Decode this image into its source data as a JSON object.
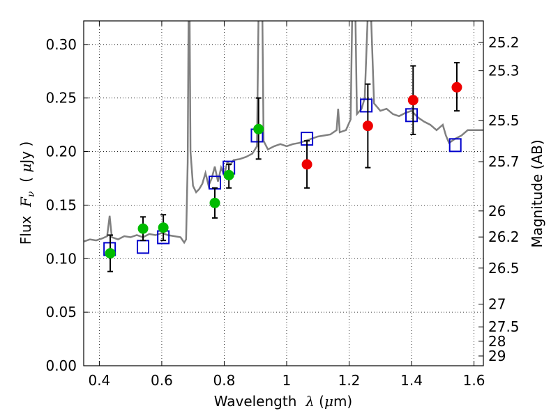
{
  "chart_data": {
    "type": "scatter",
    "xlabel": {
      "pre": "Wavelength  ",
      "sym": "λ",
      "open": " (",
      "mu": "μ",
      "unit": "m)"
    },
    "ylabel": {
      "pre": "Flux  ",
      "sym": "F",
      "sub": "ν",
      "mid": "  ( ",
      "mu": "μ",
      "unit": "Jy )"
    },
    "y2label": "Magnitude (AB)",
    "xlim": [
      0.35,
      1.63
    ],
    "ylim": [
      0.0,
      0.322
    ],
    "grid": true,
    "legend": "none",
    "x_ticks": [
      {
        "v": 0.4,
        "label": "0.4"
      },
      {
        "v": 0.6,
        "label": "0.6"
      },
      {
        "v": 0.8,
        "label": "0.8"
      },
      {
        "v": 1.0,
        "label": "1"
      },
      {
        "v": 1.2,
        "label": "1.2"
      },
      {
        "v": 1.4,
        "label": "1.4"
      },
      {
        "v": 1.6,
        "label": "1.6"
      }
    ],
    "y_ticks": [
      {
        "v": 0.0,
        "label": "0.00"
      },
      {
        "v": 0.05,
        "label": "0.05"
      },
      {
        "v": 0.1,
        "label": "0.10"
      },
      {
        "v": 0.15,
        "label": "0.15"
      },
      {
        "v": 0.2,
        "label": "0.20"
      },
      {
        "v": 0.25,
        "label": "0.25"
      },
      {
        "v": 0.3,
        "label": "0.30"
      }
    ],
    "mag_ticks": [
      "25.2",
      "25.3",
      "25.5",
      "25.7",
      "26",
      "26.2",
      "26.5",
      "27",
      "27.5",
      "28",
      "29"
    ],
    "colors": {
      "spectrum": "#808080",
      "model": "#0000cc",
      "optical": "#00bb00",
      "nir": "#ee0000",
      "errorbar": "#000000",
      "grid": "#000000"
    },
    "spectrum": [
      [
        0.35,
        0.116
      ],
      [
        0.37,
        0.118
      ],
      [
        0.39,
        0.117
      ],
      [
        0.41,
        0.119
      ],
      [
        0.425,
        0.121
      ],
      [
        0.433,
        0.14
      ],
      [
        0.44,
        0.12
      ],
      [
        0.46,
        0.118
      ],
      [
        0.48,
        0.121
      ],
      [
        0.5,
        0.12
      ],
      [
        0.52,
        0.122
      ],
      [
        0.54,
        0.12
      ],
      [
        0.56,
        0.123
      ],
      [
        0.58,
        0.122
      ],
      [
        0.6,
        0.124
      ],
      [
        0.62,
        0.122
      ],
      [
        0.64,
        0.121
      ],
      [
        0.66,
        0.12
      ],
      [
        0.672,
        0.115
      ],
      [
        0.678,
        0.118
      ],
      [
        0.683,
        0.19
      ],
      [
        0.686,
        0.33
      ],
      [
        0.689,
        0.33
      ],
      [
        0.692,
        0.2
      ],
      [
        0.7,
        0.168
      ],
      [
        0.71,
        0.162
      ],
      [
        0.72,
        0.165
      ],
      [
        0.73,
        0.17
      ],
      [
        0.74,
        0.18
      ],
      [
        0.75,
        0.168
      ],
      [
        0.76,
        0.175
      ],
      [
        0.77,
        0.186
      ],
      [
        0.78,
        0.172
      ],
      [
        0.79,
        0.185
      ],
      [
        0.8,
        0.178
      ],
      [
        0.81,
        0.19
      ],
      [
        0.82,
        0.188
      ],
      [
        0.83,
        0.192
      ],
      [
        0.85,
        0.193
      ],
      [
        0.87,
        0.195
      ],
      [
        0.89,
        0.198
      ],
      [
        0.905,
        0.205
      ],
      [
        0.91,
        0.33
      ],
      [
        0.913,
        0.33
      ],
      [
        0.917,
        0.33
      ],
      [
        0.922,
        0.33
      ],
      [
        0.926,
        0.21
      ],
      [
        0.94,
        0.202
      ],
      [
        0.96,
        0.205
      ],
      [
        0.98,
        0.207
      ],
      [
        1.0,
        0.205
      ],
      [
        1.02,
        0.207
      ],
      [
        1.04,
        0.208
      ],
      [
        1.06,
        0.21
      ],
      [
        1.08,
        0.212
      ],
      [
        1.1,
        0.214
      ],
      [
        1.12,
        0.215
      ],
      [
        1.14,
        0.216
      ],
      [
        1.16,
        0.22
      ],
      [
        1.165,
        0.24
      ],
      [
        1.17,
        0.218
      ],
      [
        1.19,
        0.22
      ],
      [
        1.205,
        0.23
      ],
      [
        1.21,
        0.33
      ],
      [
        1.22,
        0.33
      ],
      [
        1.225,
        0.235
      ],
      [
        1.24,
        0.24
      ],
      [
        1.25,
        0.25
      ],
      [
        1.26,
        0.33
      ],
      [
        1.27,
        0.33
      ],
      [
        1.28,
        0.245
      ],
      [
        1.3,
        0.238
      ],
      [
        1.32,
        0.24
      ],
      [
        1.34,
        0.235
      ],
      [
        1.36,
        0.233
      ],
      [
        1.38,
        0.236
      ],
      [
        1.4,
        0.238
      ],
      [
        1.42,
        0.232
      ],
      [
        1.44,
        0.228
      ],
      [
        1.46,
        0.225
      ],
      [
        1.48,
        0.22
      ],
      [
        1.5,
        0.225
      ],
      [
        1.51,
        0.215
      ],
      [
        1.52,
        0.208
      ],
      [
        1.54,
        0.212
      ],
      [
        1.56,
        0.215
      ],
      [
        1.58,
        0.22
      ],
      [
        1.6,
        0.22
      ],
      [
        1.63,
        0.22
      ]
    ],
    "model_points": [
      {
        "x": 0.433,
        "y": 0.109
      },
      {
        "x": 0.54,
        "y": 0.111
      },
      {
        "x": 0.605,
        "y": 0.12
      },
      {
        "x": 0.77,
        "y": 0.171
      },
      {
        "x": 0.815,
        "y": 0.185
      },
      {
        "x": 0.905,
        "y": 0.215
      },
      {
        "x": 1.065,
        "y": 0.212
      },
      {
        "x": 1.255,
        "y": 0.243
      },
      {
        "x": 1.4,
        "y": 0.234
      },
      {
        "x": 1.54,
        "y": 0.206
      }
    ],
    "optical_points": [
      {
        "x": 0.435,
        "y": 0.105,
        "lo": 0.088,
        "hi": 0.122
      },
      {
        "x": 0.54,
        "y": 0.128,
        "lo": 0.117,
        "hi": 0.139
      },
      {
        "x": 0.605,
        "y": 0.129,
        "lo": 0.117,
        "hi": 0.141
      },
      {
        "x": 0.77,
        "y": 0.152,
        "lo": 0.138,
        "hi": 0.166
      },
      {
        "x": 0.815,
        "y": 0.178,
        "lo": 0.166,
        "hi": 0.188
      },
      {
        "x": 0.91,
        "y": 0.221,
        "lo": 0.193,
        "hi": 0.25
      }
    ],
    "nir_points": [
      {
        "x": 1.065,
        "y": 0.188,
        "lo": 0.166,
        "hi": 0.21
      },
      {
        "x": 1.26,
        "y": 0.224,
        "lo": 0.185,
        "hi": 0.263
      },
      {
        "x": 1.405,
        "y": 0.248,
        "lo": 0.216,
        "hi": 0.28
      },
      {
        "x": 1.545,
        "y": 0.26,
        "lo": 0.238,
        "hi": 0.283
      }
    ]
  }
}
